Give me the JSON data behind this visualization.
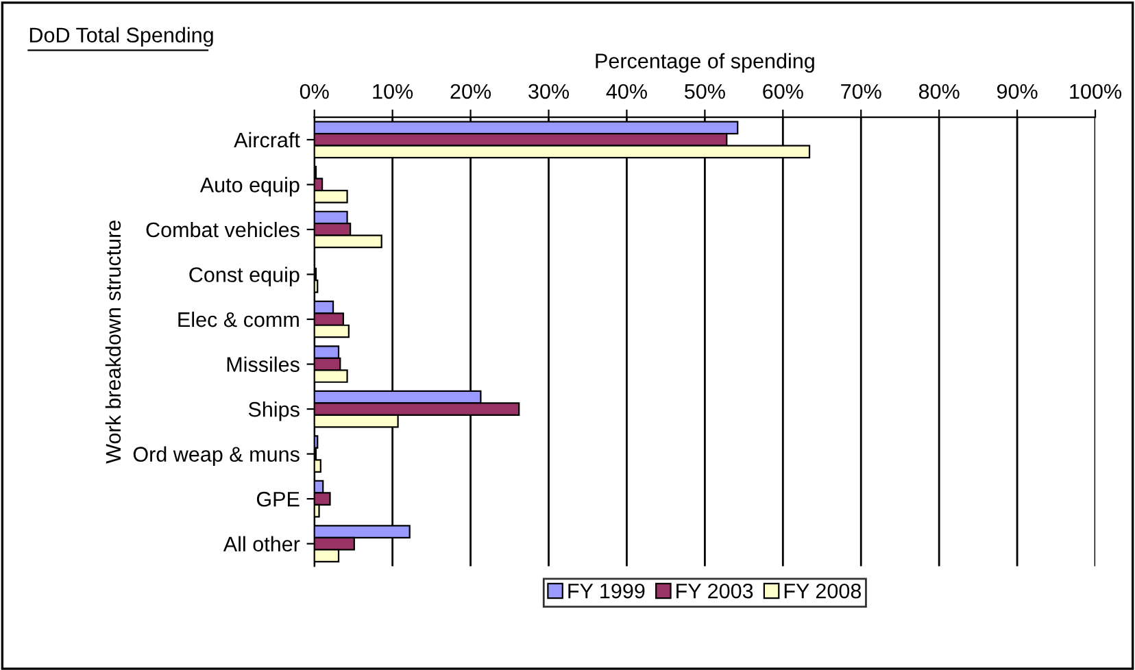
{
  "chart_data": {
    "type": "bar",
    "orientation": "horizontal",
    "title": "DoD Total Spending",
    "xlabel": "Percentage of spending",
    "ylabel": "Work breakdown structure",
    "categories": [
      "Aircraft",
      "Auto equip",
      "Combat vehicles",
      "Const equip",
      "Elec & comm",
      "Missiles",
      "Ships",
      "Ord weap & muns",
      "GPE",
      "All other"
    ],
    "series": [
      {
        "name": "FY 1999",
        "color": "#9999ff",
        "values": [
          54.2,
          0.2,
          4.2,
          null,
          2.4,
          3.1,
          21.3,
          0.4,
          1.1,
          12.2
        ]
      },
      {
        "name": "FY 2003",
        "color": "#993366",
        "values": [
          52.8,
          1.0,
          4.6,
          0.2,
          3.7,
          3.3,
          26.2,
          0.2,
          2.0,
          5.1
        ]
      },
      {
        "name": "FY 2008",
        "color": "#ffffcc",
        "values": [
          63.4,
          4.2,
          8.6,
          0.4,
          4.4,
          4.2,
          10.7,
          0.8,
          0.6,
          3.1
        ]
      }
    ],
    "xlim": [
      0,
      100
    ],
    "xticks": [
      {
        "value": 0,
        "label": "0%"
      },
      {
        "value": 10,
        "label": "10%"
      },
      {
        "value": 20,
        "label": "20%"
      },
      {
        "value": 30,
        "label": "30%"
      },
      {
        "value": 40,
        "label": "40%"
      },
      {
        "value": 50,
        "label": "50%"
      },
      {
        "value": 60,
        "label": "60%"
      },
      {
        "value": 70,
        "label": "70%"
      },
      {
        "value": 80,
        "label": "80%"
      },
      {
        "value": 90,
        "label": "90%"
      },
      {
        "value": 100,
        "label": "100%"
      }
    ],
    "grid": "x",
    "legend": "bottom"
  }
}
